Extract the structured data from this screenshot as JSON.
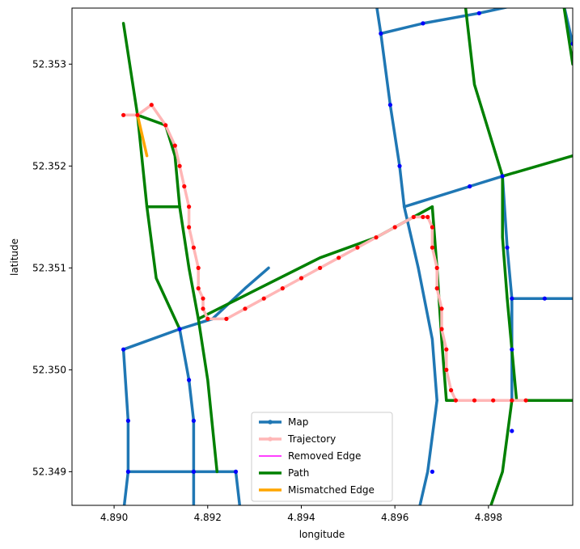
{
  "chart_data": {
    "type": "line",
    "xlabel": "longitude",
    "ylabel": "latitude",
    "xlim": [
      4.8891,
      4.8998
    ],
    "ylim": [
      52.34867,
      52.35355
    ],
    "xticks": [
      4.89,
      4.892,
      4.894,
      4.896,
      4.898
    ],
    "xtick_labels": [
      "4.890",
      "4.892",
      "4.894",
      "4.896",
      "4.898"
    ],
    "yticks": [
      52.349,
      52.35,
      52.351,
      52.352,
      52.353
    ],
    "ytick_labels": [
      "52.349",
      "52.350",
      "52.351",
      "52.352",
      "52.353"
    ],
    "grid": false,
    "legend_position": "lower-center",
    "legend": [
      {
        "label": "Map",
        "color": "#1f77b4",
        "style": "line-marker"
      },
      {
        "label": "Trajectory",
        "color": "#ffb6b6",
        "style": "line-marker"
      },
      {
        "label": "Removed Edge",
        "color": "#ff00ff",
        "style": "thin-line"
      },
      {
        "label": "Path",
        "color": "#008000",
        "style": "line"
      },
      {
        "label": "Mismatched Edge",
        "color": "#ffa500",
        "style": "line"
      }
    ],
    "map_edges": [
      [
        [
          4.8902,
          52.3502
        ],
        [
          4.8903,
          52.3495
        ],
        [
          4.8903,
          52.349
        ],
        [
          4.8902,
          52.3486
        ]
      ],
      [
        [
          4.8903,
          52.349
        ],
        [
          4.8917,
          52.349
        ],
        [
          4.8926,
          52.349
        ],
        [
          4.8927,
          52.3486
        ]
      ],
      [
        [
          4.8902,
          52.3502
        ],
        [
          4.8914,
          52.3504
        ],
        [
          4.8921,
          52.3505
        ]
      ],
      [
        [
          4.8914,
          52.3504
        ],
        [
          4.8916,
          52.3499
        ],
        [
          4.8917,
          52.3495
        ],
        [
          4.8917,
          52.349
        ],
        [
          4.8917,
          52.3486
        ]
      ],
      [
        [
          4.8921,
          52.3505
        ],
        [
          4.8928,
          52.3508
        ],
        [
          4.8933,
          52.351
        ]
      ],
      [
        [
          4.8956,
          52.3536
        ],
        [
          4.8957,
          52.3533
        ],
        [
          4.8959,
          52.3526
        ],
        [
          4.8961,
          52.352
        ],
        [
          4.8962,
          52.3516
        ]
      ],
      [
        [
          4.8957,
          52.3533
        ],
        [
          4.8966,
          52.3534
        ],
        [
          4.8978,
          52.3535
        ],
        [
          4.8988,
          52.3536
        ]
      ],
      [
        [
          4.8962,
          52.3516
        ],
        [
          4.8976,
          52.3518
        ],
        [
          4.8983,
          52.3519
        ]
      ],
      [
        [
          4.8983,
          52.3519
        ],
        [
          4.8984,
          52.3512
        ],
        [
          4.8985,
          52.3507
        ],
        [
          4.8985,
          52.3502
        ],
        [
          4.8985,
          52.3497
        ]
      ],
      [
        [
          4.8985,
          52.3507
        ],
        [
          4.8992,
          52.3507
        ],
        [
          4.8998,
          52.3507
        ]
      ],
      [
        [
          4.8962,
          52.3516
        ],
        [
          4.8965,
          52.351
        ],
        [
          4.8968,
          52.3503
        ],
        [
          4.8969,
          52.3497
        ]
      ],
      [
        [
          4.8969,
          52.3497
        ],
        [
          4.8967,
          52.349
        ],
        [
          4.8965,
          52.3486
        ]
      ],
      [
        [
          4.8996,
          52.3536
        ],
        [
          4.8998,
          52.3532
        ]
      ]
    ],
    "map_nodes": [
      [
        4.8902,
        52.3502
      ],
      [
        4.8903,
        52.3495
      ],
      [
        4.8903,
        52.349
      ],
      [
        4.8917,
        52.349
      ],
      [
        4.8926,
        52.349
      ],
      [
        4.8914,
        52.3504
      ],
      [
        4.8916,
        52.3499
      ],
      [
        4.8917,
        52.3495
      ],
      [
        4.8957,
        52.3533
      ],
      [
        4.8966,
        52.3534
      ],
      [
        4.8978,
        52.3535
      ],
      [
        4.8959,
        52.3526
      ],
      [
        4.8961,
        52.352
      ],
      [
        4.8976,
        52.3518
      ],
      [
        4.8983,
        52.3519
      ],
      [
        4.8984,
        52.3512
      ],
      [
        4.8985,
        52.3507
      ],
      [
        4.8992,
        52.3507
      ],
      [
        4.8985,
        52.3502
      ],
      [
        4.8968,
        52.349
      ],
      [
        4.8985,
        52.3494
      ],
      [
        4.8998,
        52.3532
      ]
    ],
    "path_edges": [
      [
        [
          4.8902,
          52.3534
        ],
        [
          4.8905,
          52.3525
        ],
        [
          4.8911,
          52.3524
        ],
        [
          4.8913,
          52.3521
        ],
        [
          4.8914,
          52.3516
        ],
        [
          4.8916,
          52.351
        ],
        [
          4.8918,
          52.3505
        ]
      ],
      [
        [
          4.8918,
          52.3505
        ],
        [
          4.8931,
          52.3508
        ],
        [
          4.8944,
          52.3511
        ],
        [
          4.8956,
          52.3513
        ],
        [
          4.8968,
          52.3516
        ]
      ],
      [
        [
          4.8968,
          52.3516
        ],
        [
          4.8969,
          52.351
        ],
        [
          4.897,
          52.3503
        ],
        [
          4.8971,
          52.3497
        ],
        [
          4.8985,
          52.3497
        ],
        [
          4.8998,
          52.3497
        ]
      ],
      [
        [
          4.8905,
          52.3525
        ],
        [
          4.8907,
          52.3516
        ],
        [
          4.8909,
          52.3509
        ],
        [
          4.8914,
          52.3504
        ]
      ],
      [
        [
          4.8907,
          52.3516
        ],
        [
          4.8914,
          52.3516
        ]
      ],
      [
        [
          4.8918,
          52.3505
        ],
        [
          4.892,
          52.3499
        ],
        [
          4.8922,
          52.349
        ]
      ],
      [
        [
          4.8985,
          52.3497
        ],
        [
          4.8983,
          52.349
        ],
        [
          4.898,
          52.3486
        ]
      ],
      [
        [
          4.8975,
          52.3536
        ],
        [
          4.8977,
          52.3528
        ],
        [
          4.8983,
          52.3519
        ],
        [
          4.8983,
          52.3513
        ],
        [
          4.8984,
          52.3507
        ],
        [
          4.8986,
          52.3497
        ]
      ],
      [
        [
          4.8983,
          52.3519
        ],
        [
          4.8998,
          52.3521
        ]
      ],
      [
        [
          4.8996,
          52.3536
        ],
        [
          4.8998,
          52.353
        ]
      ]
    ],
    "mismatched_edges": [
      [
        [
          4.8905,
          52.3525
        ],
        [
          4.8907,
          52.3521
        ]
      ]
    ],
    "trajectory": [
      [
        4.8902,
        52.3525
      ],
      [
        4.8905,
        52.3525
      ],
      [
        4.8908,
        52.3526
      ],
      [
        4.8911,
        52.3524
      ],
      [
        4.8913,
        52.3522
      ],
      [
        4.8914,
        52.352
      ],
      [
        4.8915,
        52.3518
      ],
      [
        4.8916,
        52.3516
      ],
      [
        4.8916,
        52.3514
      ],
      [
        4.8917,
        52.3512
      ],
      [
        4.8918,
        52.351
      ],
      [
        4.8918,
        52.3508
      ],
      [
        4.8919,
        52.3507
      ],
      [
        4.8919,
        52.3506
      ],
      [
        4.892,
        52.3505
      ],
      [
        4.8924,
        52.3505
      ],
      [
        4.8928,
        52.3506
      ],
      [
        4.8932,
        52.3507
      ],
      [
        4.8936,
        52.3508
      ],
      [
        4.894,
        52.3509
      ],
      [
        4.8944,
        52.351
      ],
      [
        4.8948,
        52.3511
      ],
      [
        4.8952,
        52.3512
      ],
      [
        4.8956,
        52.3513
      ],
      [
        4.896,
        52.3514
      ],
      [
        4.8964,
        52.3515
      ],
      [
        4.8966,
        52.3515
      ],
      [
        4.8967,
        52.3515
      ],
      [
        4.8968,
        52.3514
      ],
      [
        4.8968,
        52.3512
      ],
      [
        4.8969,
        52.351
      ],
      [
        4.8969,
        52.3508
      ],
      [
        4.897,
        52.3506
      ],
      [
        4.897,
        52.3504
      ],
      [
        4.8971,
        52.3502
      ],
      [
        4.8971,
        52.35
      ],
      [
        4.8972,
        52.3498
      ],
      [
        4.8973,
        52.3497
      ],
      [
        4.8977,
        52.3497
      ],
      [
        4.8981,
        52.3497
      ],
      [
        4.8985,
        52.3497
      ],
      [
        4.8988,
        52.3497
      ]
    ]
  }
}
